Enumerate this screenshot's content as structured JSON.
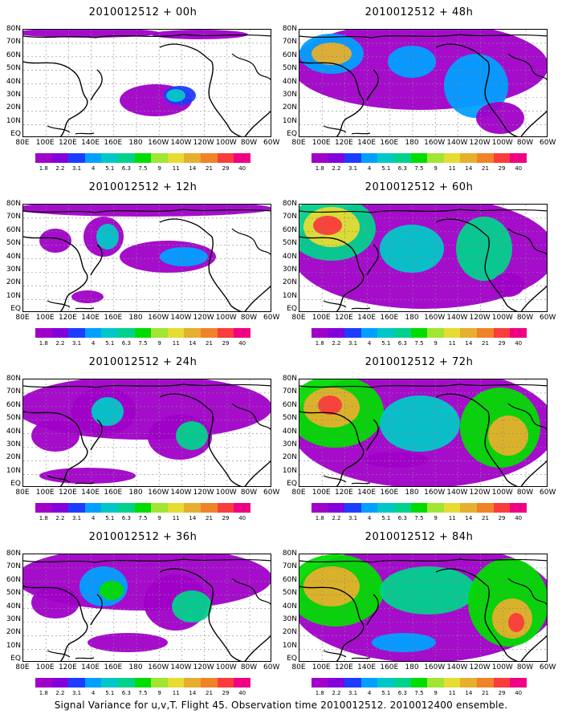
{
  "footer": "Signal Variance for u,v,T. Flight 45. Observation time 2010012512. 2010012400 ensemble.",
  "lat_labels": [
    "80N",
    "70N",
    "60N",
    "50N",
    "40N",
    "30N",
    "20N",
    "10N",
    "EQ"
  ],
  "lon_labels": [
    "80E",
    "100E",
    "120E",
    "140E",
    "160E",
    "180",
    "160W",
    "140W",
    "120W",
    "100W",
    "80W",
    "60W"
  ],
  "colorbar": {
    "labels": [
      "1.8",
      "2.2",
      "3.1",
      "4",
      "5.1",
      "6.3",
      "7.5",
      "9",
      "11",
      "14",
      "21",
      "29",
      "40"
    ],
    "colors": [
      "#a000c8",
      "#8200dc",
      "#1e3cff",
      "#00a0ff",
      "#00c8c8",
      "#00d28c",
      "#00dc00",
      "#a0e632",
      "#e6dc32",
      "#e6af2d",
      "#f08228",
      "#fa3c3c",
      "#f00082"
    ]
  },
  "panels": [
    {
      "title": "2010012512 + 00h"
    },
    {
      "title": "2010012512 + 48h"
    },
    {
      "title": "2010012512 + 12h"
    },
    {
      "title": "2010012512 + 60h"
    },
    {
      "title": "2010012512 + 24h"
    },
    {
      "title": "2010012512 + 72h"
    },
    {
      "title": "2010012512 + 36h"
    },
    {
      "title": "2010012512 + 84h"
    }
  ]
}
